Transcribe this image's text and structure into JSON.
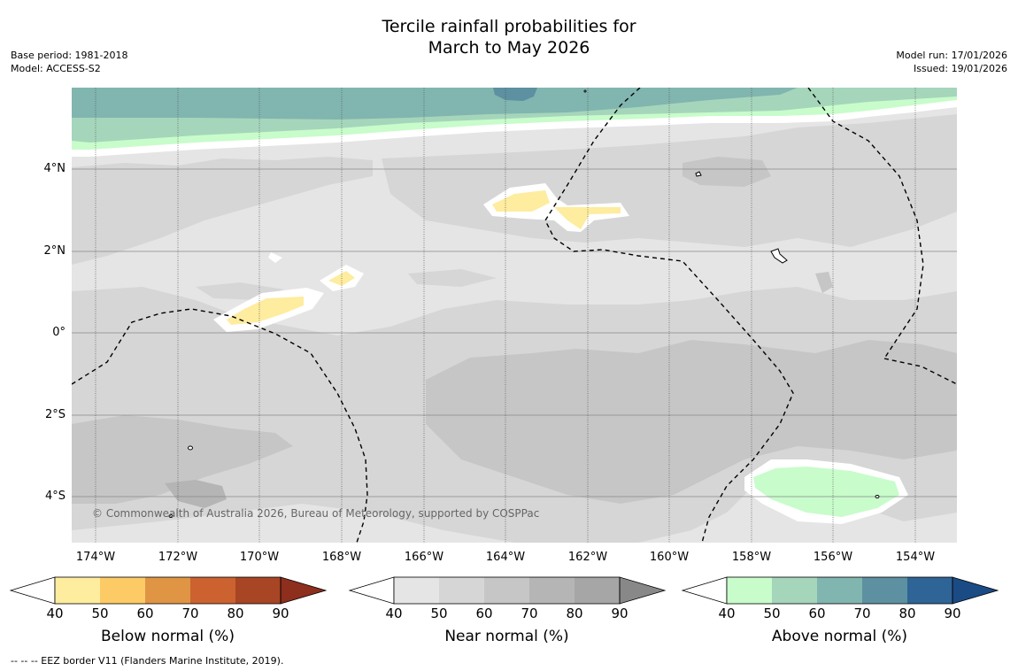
{
  "title_line1": "Tercile rainfall probabilities for",
  "title_line2": "March to May 2026",
  "base_period": "Base period: 1981-2018",
  "model": "Model: ACCESS-S2",
  "model_run": "Model run: 17/01/2026",
  "issued": "Issued: 19/01/2026",
  "copyright": "© Commonwealth of Australia 2026, Bureau of Meteorology, supported by COSPPac",
  "footnote": "--  --  -- EEZ border V11 (Flanders Marine Institute, 2019).",
  "map": {
    "lon_range": [
      -174.6,
      -152.9
    ],
    "lat_range": [
      -5.1,
      5.9
    ],
    "y_axis_labels": [
      "4°N",
      "2°N",
      "0°",
      "2°S",
      "4°S"
    ],
    "x_axis_labels": [
      "174°W",
      "172°W",
      "170°W",
      "168°W",
      "166°W",
      "164°W",
      "162°W",
      "160°W",
      "158°W",
      "156°W",
      "154°W"
    ]
  },
  "colorbars": [
    {
      "title": "Below normal (%)",
      "ticks": [
        "40",
        "50",
        "60",
        "70",
        "80",
        "90"
      ],
      "colors": [
        "#ffffff",
        "#feec9f",
        "#fdcb66",
        "#e09545",
        "#cb6230",
        "#a84524",
        "#8e2e1d"
      ]
    },
    {
      "title": "Near normal (%)",
      "ticks": [
        "40",
        "50",
        "60",
        "70",
        "80",
        "90"
      ],
      "colors": [
        "#ffffff",
        "#e5e5e5",
        "#d6d6d6",
        "#c6c6c6",
        "#b5b5b5",
        "#a6a6a6",
        "#888888"
      ]
    },
    {
      "title": "Above normal (%)",
      "ticks": [
        "40",
        "50",
        "60",
        "70",
        "80",
        "90"
      ],
      "colors": [
        "#ffffff",
        "#c8fccb",
        "#a5d6bb",
        "#81b5af",
        "#5d90a0",
        "#2f6496",
        "#1a4b84"
      ]
    }
  ]
}
